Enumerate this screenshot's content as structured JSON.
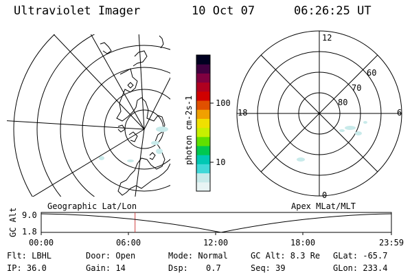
{
  "header": {
    "title": "Ultraviolet Imager",
    "date": "10 Oct 07",
    "time": "06:26:25 UT"
  },
  "colorbar": {
    "unit_label": "photon cm-2s-1",
    "ticks": [
      "100",
      "10"
    ],
    "colors": [
      "#e8f4f4",
      "#c8eaea",
      "#40d8d8",
      "#00c8b4",
      "#00c850",
      "#60e000",
      "#c8f000",
      "#f0e000",
      "#f0a000",
      "#e05000",
      "#d00000",
      "#b00020",
      "#800040",
      "#400040",
      "#000020"
    ]
  },
  "polar": {
    "mlt_labels": {
      "top": "12",
      "left": "18",
      "right": "6",
      "bottom": "0"
    },
    "lat_labels": [
      "60",
      "70",
      "80"
    ]
  },
  "timeline": {
    "axis_label": "GC Alt",
    "y_ticks": [
      "9.0",
      "1.8"
    ],
    "left_caption": "Geographic Lat/Lon",
    "right_caption": "Apex MLat/MLT",
    "x_ticks": [
      "00:00",
      "06:00",
      "12:00",
      "18:00",
      "23:59"
    ],
    "current_time_fraction": 0.268,
    "marker_color": "#d04040"
  },
  "info": {
    "flt": "Flt: LBHL",
    "ip": "IP: 36.0",
    "door": "Door: Open",
    "gain": "Gain: 14",
    "mode": "Mode: Normal",
    "dsp_label": "Dsp:",
    "dsp_value": "0.7",
    "gc_alt": "GC Alt: 8.3 Re",
    "seq": "Seq: 39",
    "glat": "GLat: -65.7",
    "glon": "GLon: 233.4"
  }
}
